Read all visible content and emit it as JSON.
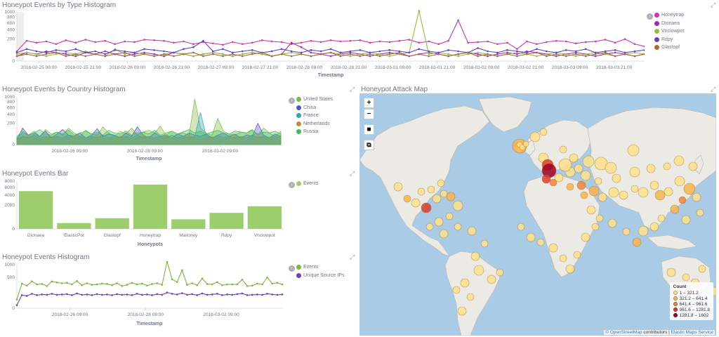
{
  "titles": {
    "type_hist": "Honeypot Events by Type Histogram",
    "country_hist": "Honeypot Events by Country Histogram",
    "bar": "Honeypot Events Bar",
    "events_hist": "Honeypot Events Histogram",
    "map": "Honeypot Attack Map"
  },
  "map": {
    "zoom_in": "+",
    "zoom_out": "−",
    "legend_title": "Count",
    "legend_items": [
      {
        "label": "1 – 321.2",
        "color": "#fde28b"
      },
      {
        "label": "321.2 – 641.4",
        "color": "#f9b54f"
      },
      {
        "label": "641.4 – 961.6",
        "color": "#f0853d"
      },
      {
        "label": "961.6 – 1281.8",
        "color": "#d9402c"
      },
      {
        "label": "1281.8 – 1602",
        "color": "#a50026"
      }
    ],
    "attrib_a": "© OpenStreetMap",
    "attrib_b": " contributors",
    "attrib_c": "Elastic Maps Service"
  },
  "chart_data": [
    {
      "type": "line",
      "title": "Honeypot Events by Type Histogram",
      "xlabel": "Timestamp",
      "x_ticks": [
        "2018-02-25 09:00",
        "2018-02-25 21:00",
        "2018-02-26 09:00",
        "2018-02-26 21:00",
        "2018-02-27 09:00",
        "2018-02-27 21:00",
        "2018-02-28 09:00",
        "2018-02-28 21:00",
        "2018-03-01 09:00",
        "2018-03-01 21:00",
        "2018-03-02 09:00",
        "2018-03-02 21:00",
        "2018-03-03 09:00",
        "2018-03-03 21:00"
      ],
      "y_ticks": [
        "1000",
        "800",
        "600",
        "400",
        "200",
        "0"
      ],
      "y_scale": "sqrt",
      "ylim": [
        0,
        1000
      ],
      "series": [
        {
          "name": "Honeytrap",
          "color": "#c936b6",
          "values": [
            40,
            170,
            140,
            160,
            120,
            180,
            140,
            190,
            150,
            170,
            120,
            160,
            150,
            190,
            180,
            170,
            140,
            160,
            120,
            150,
            130,
            110,
            150,
            120,
            140,
            180,
            160,
            150,
            120,
            140,
            170,
            150,
            180,
            160,
            170,
            180,
            140,
            160,
            150,
            170,
            190,
            140,
            160,
            120,
            170,
            690,
            140,
            150,
            160,
            120,
            140,
            60,
            160,
            120,
            150,
            170,
            160,
            130,
            150,
            160,
            190,
            140,
            200,
            120,
            90
          ]
        },
        {
          "name": "Dionaea",
          "color": "#a22bb3",
          "values": [
            10,
            30,
            20,
            40,
            30,
            20,
            10,
            30,
            20,
            40,
            20,
            10,
            20,
            30,
            20,
            10,
            30,
            20,
            10,
            20,
            30,
            20,
            10,
            20,
            30,
            20,
            10,
            20,
            140,
            80,
            30,
            20,
            10,
            20,
            30,
            20,
            10,
            20,
            30,
            20,
            10,
            20,
            30,
            20,
            10,
            20,
            30,
            20,
            10,
            20,
            30,
            20,
            40,
            30,
            20,
            10,
            20,
            30,
            20,
            10,
            20,
            30,
            20,
            10,
            20
          ]
        },
        {
          "name": "Vnclowpot",
          "color": "#93c03c",
          "values": [
            20,
            30,
            20,
            10,
            20,
            30,
            20,
            40,
            20,
            10,
            60,
            20,
            30,
            20,
            10,
            20,
            30,
            20,
            10,
            20,
            30,
            20,
            10,
            20,
            30,
            20,
            10,
            20,
            30,
            20,
            10,
            20,
            30,
            20,
            10,
            20,
            30,
            20,
            10,
            20,
            30,
            1050,
            20,
            30,
            20,
            10,
            20,
            30,
            20,
            10,
            20,
            30,
            20,
            10,
            20,
            30,
            20,
            10,
            20,
            30,
            20,
            10,
            20,
            30,
            20
          ]
        },
        {
          "name": "Rdpy",
          "color": "#6541c0",
          "values": [
            30,
            60,
            40,
            30,
            50,
            40,
            60,
            30,
            40,
            20,
            50,
            40,
            30,
            60,
            50,
            40,
            30,
            60,
            80,
            170,
            40,
            60,
            30,
            40,
            50,
            30,
            40,
            60,
            40,
            30,
            50,
            40,
            60,
            30,
            40,
            50,
            30,
            40,
            50,
            40,
            30,
            60,
            40,
            30,
            50,
            40,
            30,
            70,
            40,
            30,
            50,
            40,
            30,
            60,
            40,
            30,
            50,
            40,
            60,
            30,
            40,
            50,
            30,
            40,
            50
          ]
        },
        {
          "name": "Glastopf",
          "color": "#a56a35",
          "values": [
            10,
            20,
            10,
            20,
            30,
            10,
            20,
            10,
            20,
            10,
            20,
            30,
            10,
            20,
            10,
            20,
            10,
            20,
            30,
            10,
            20,
            10,
            20,
            10,
            20,
            30,
            10,
            20,
            10,
            20,
            10,
            20,
            30,
            10,
            20,
            10,
            20,
            10,
            20,
            30,
            10,
            20,
            10,
            20,
            10,
            20,
            30,
            10,
            20,
            10,
            20,
            10,
            20,
            30,
            10,
            20,
            10,
            20,
            10,
            20,
            30,
            10,
            20,
            10,
            20
          ]
        }
      ],
      "legend_position": "right"
    },
    {
      "type": "area",
      "title": "Honeypot Events by Country Histogram",
      "xlabel": "Timestamp",
      "x_ticks": [
        "2018-02-26 09:00",
        "2018-02-28 09:00",
        "2018-03-02 09:00"
      ],
      "y_ticks": [
        "1000",
        "800",
        "600",
        "400",
        "200",
        "0"
      ],
      "y_scale": "sqrt",
      "ylim": [
        0,
        1000
      ],
      "series": [
        {
          "name": "United States",
          "color": "#7db73d",
          "values": [
            20,
            60,
            40,
            80,
            30,
            100,
            50,
            70,
            40,
            120,
            60,
            30,
            90,
            50,
            40,
            140,
            60,
            30,
            80,
            50,
            120,
            40,
            70,
            90,
            60,
            150,
            40,
            80,
            50,
            60,
            40,
            900,
            120,
            60,
            40,
            300,
            80,
            50,
            40,
            70,
            60,
            100,
            40,
            120,
            60,
            30,
            80
          ]
        },
        {
          "name": "China",
          "color": "#4d56c7",
          "values": [
            10,
            120,
            40,
            60,
            30,
            80,
            20,
            50,
            100,
            40,
            30,
            60,
            20,
            40,
            110,
            30,
            50,
            40,
            20,
            60,
            30,
            140,
            40,
            20,
            60,
            30,
            40,
            20,
            50,
            30,
            60,
            40,
            30,
            50,
            20,
            40,
            60,
            30,
            50,
            20,
            40,
            30,
            200,
            40,
            20,
            50,
            30
          ]
        },
        {
          "name": "France",
          "color": "#29a4c1",
          "values": [
            10,
            30,
            20,
            40,
            20,
            30,
            20,
            30,
            20,
            40,
            20,
            30,
            20,
            30,
            20,
            40,
            20,
            30,
            20,
            30,
            20,
            40,
            20,
            30,
            20,
            30,
            20,
            40,
            20,
            30,
            20,
            30,
            450,
            30,
            20,
            40,
            20,
            30,
            20,
            30,
            20,
            40,
            20,
            30,
            20,
            30,
            20
          ]
        },
        {
          "name": "Netherlands",
          "color": "#c48b34",
          "values": [
            10,
            20,
            30,
            20,
            10,
            20,
            30,
            20,
            10,
            20,
            30,
            20,
            10,
            20,
            30,
            20,
            10,
            20,
            30,
            20,
            10,
            20,
            30,
            20,
            10,
            20,
            30,
            20,
            10,
            20,
            30,
            20,
            10,
            20,
            30,
            20,
            10,
            20,
            30,
            20,
            10,
            20,
            30,
            20,
            10,
            20,
            30
          ]
        },
        {
          "name": "Russia",
          "color": "#3fba5e",
          "values": [
            30,
            80,
            40,
            60,
            100,
            50,
            40,
            70,
            50,
            90,
            40,
            60,
            80,
            50,
            70,
            40,
            90,
            60,
            50,
            80,
            40,
            60,
            70,
            50,
            90,
            40,
            60,
            80,
            50,
            70,
            100,
            60,
            80,
            50,
            70,
            90,
            60,
            50,
            80,
            70,
            60,
            90,
            50,
            70,
            60,
            80,
            50
          ]
        }
      ],
      "legend_position": "right"
    },
    {
      "type": "bar",
      "title": "Honeypot Events Bar",
      "xlabel": "Honeypots",
      "categories": [
        "Dionaea",
        "ElasticPot",
        "Glastopf",
        "Honeytrap",
        "Mailoney",
        "Rdpy",
        "Vnclowpot"
      ],
      "y_ticks": [
        "8000",
        "6000",
        "4000",
        "2000",
        "0"
      ],
      "y_scale": "sqrt",
      "ylim": [
        0,
        8000
      ],
      "series": [
        {
          "name": "Events",
          "color": "#9dce6b",
          "values": [
            5000,
            120,
            400,
            6900,
            320,
            900,
            1800
          ]
        }
      ],
      "legend_position": "right"
    },
    {
      "type": "line",
      "title": "Honeypot Events Histogram",
      "xlabel": "Timestamp",
      "x_ticks": [
        "2018-02-26 09:00",
        "2018-02-28 09:00",
        "2018-03-02 09:00"
      ],
      "y_ticks": [
        "1000",
        "500",
        "0"
      ],
      "y_scale": "sqrt",
      "ylim": [
        0,
        1000
      ],
      "series": [
        {
          "name": "Events",
          "color": "#7ab83e",
          "values": [
            40,
            320,
            270,
            380,
            300,
            310,
            260,
            380,
            350,
            330,
            340,
            300,
            390,
            280,
            330,
            290,
            300,
            320,
            310,
            280,
            330,
            260,
            290,
            340,
            300,
            320,
            270,
            310,
            330,
            290,
            1150,
            440,
            360,
            760,
            290,
            330,
            280,
            470,
            310,
            300,
            360,
            280,
            300,
            300,
            300,
            430,
            260,
            270,
            320,
            300,
            500,
            320,
            340,
            300
          ]
        },
        {
          "name": "Unique Source IPs",
          "color": "#6d3fc0",
          "values": [
            5,
            90,
            80,
            110,
            90,
            100,
            95,
            110,
            95,
            100,
            105,
            90,
            115,
            95,
            100,
            90,
            105,
            95,
            100,
            90,
            105,
            95,
            100,
            90,
            110,
            95,
            100,
            90,
            105,
            95,
            130,
            110,
            100,
            120,
            95,
            105,
            90,
            115,
            95,
            100,
            110,
            90,
            100,
            95,
            105,
            115,
            90,
            95,
            100,
            95,
            110,
            100,
            95,
            100
          ]
        }
      ],
      "legend_position": "right"
    }
  ]
}
